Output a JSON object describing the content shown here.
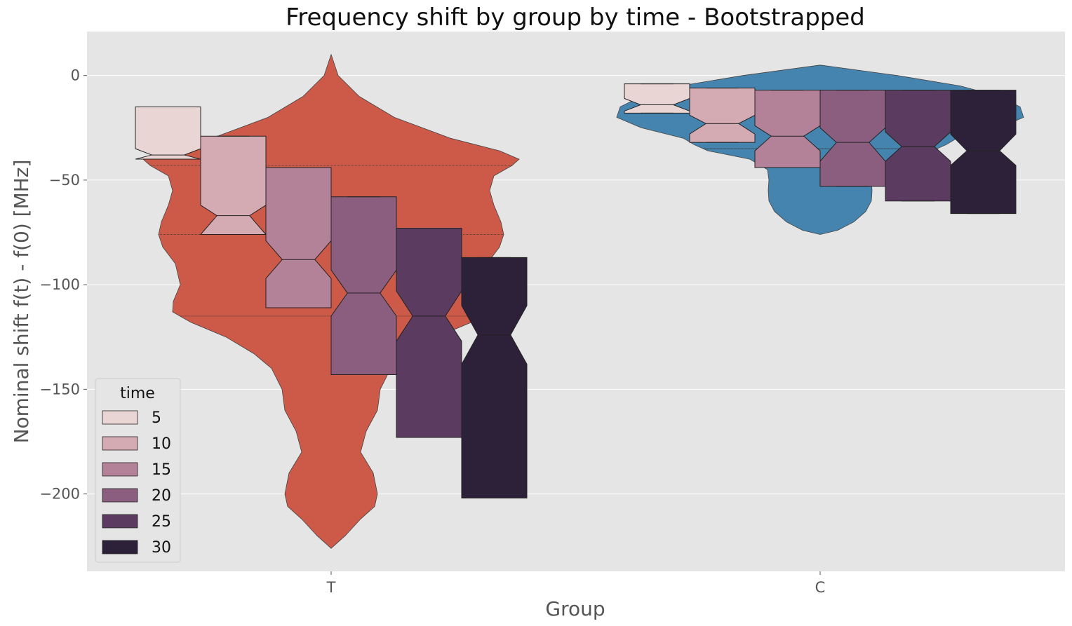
{
  "chart_data": {
    "type": "violin+boxplot",
    "title": "Frequency shift by group by time - Bootstrapped",
    "xlabel": "Group",
    "ylabel": "Nominal shift f(t) - f(0) [MHz]",
    "categories": [
      "T",
      "C"
    ],
    "ylim": [
      -237,
      21
    ],
    "yticks": [
      0,
      -50,
      -100,
      -150,
      -200
    ],
    "ytick_labels": [
      "0",
      "−50",
      "−100",
      "−150",
      "−200"
    ],
    "grid": true,
    "legend": {
      "title": "time",
      "placement": "lower-left",
      "entries": [
        "5",
        "10",
        "15",
        "20",
        "25",
        "30"
      ]
    },
    "colors": {
      "background": "#e5e5e5",
      "grid": "#ffffff",
      "violin_T": "#cd5a48",
      "violin_C": "#4484ae",
      "box_5": "#e9d5d3",
      "box_10": "#d5abb3",
      "box_15": "#b48298",
      "box_20": "#8b5e80",
      "box_25": "#5c3b60",
      "box_30": "#2d2139"
    },
    "violins": [
      {
        "group": "T",
        "quartile_lines": [
          -43,
          -76,
          -115
        ],
        "profile": [
          [
            10,
            0
          ],
          [
            0,
            10
          ],
          [
            -10,
            40
          ],
          [
            -20,
            90
          ],
          [
            -30,
            170
          ],
          [
            -36,
            240
          ],
          [
            -40,
            268
          ],
          [
            -43,
            258
          ],
          [
            -48,
            232
          ],
          [
            -55,
            226
          ],
          [
            -62,
            232
          ],
          [
            -70,
            242
          ],
          [
            -76,
            246
          ],
          [
            -82,
            240
          ],
          [
            -90,
            222
          ],
          [
            -100,
            215
          ],
          [
            -108,
            225
          ],
          [
            -113,
            226
          ],
          [
            -118,
            200
          ],
          [
            -125,
            150
          ],
          [
            -133,
            110
          ],
          [
            -140,
            85
          ],
          [
            -150,
            70
          ],
          [
            -160,
            66
          ],
          [
            -170,
            50
          ],
          [
            -180,
            42
          ],
          [
            -190,
            60
          ],
          [
            -200,
            66
          ],
          [
            -206,
            62
          ],
          [
            -212,
            42
          ],
          [
            -220,
            20
          ],
          [
            -226,
            0
          ]
        ]
      },
      {
        "group": "C",
        "quartile_lines": [
          -35,
          -35,
          -35
        ],
        "profile": [
          [
            5,
            0
          ],
          [
            0,
            110
          ],
          [
            -5,
            200
          ],
          [
            -10,
            255
          ],
          [
            -15,
            285
          ],
          [
            -20,
            290
          ],
          [
            -25,
            255
          ],
          [
            -30,
            195
          ],
          [
            -33,
            180
          ],
          [
            -36,
            160
          ],
          [
            -40,
            100
          ],
          [
            -45,
            75
          ],
          [
            -50,
            73
          ],
          [
            -55,
            74
          ],
          [
            -60,
            73
          ],
          [
            -65,
            65
          ],
          [
            -70,
            48
          ],
          [
            -74,
            25
          ],
          [
            -76,
            0
          ]
        ]
      }
    ],
    "boxes": [
      {
        "group": "T",
        "time": "5",
        "q1": -40,
        "median": -38,
        "q3": -15,
        "ci_low": -40,
        "ci_high": -35,
        "wlow": -40,
        "whigh": -15
      },
      {
        "group": "T",
        "time": "10",
        "q1": -76,
        "median": -67,
        "q3": -29,
        "ci_low": -76,
        "ci_high": -62,
        "wlow": -76,
        "whigh": -29
      },
      {
        "group": "T",
        "time": "15",
        "q1": -111,
        "median": -88,
        "q3": -44,
        "ci_low": -97,
        "ci_high": -79,
        "wlow": -111,
        "whigh": -44
      },
      {
        "group": "T",
        "time": "20",
        "q1": -143,
        "median": -104,
        "q3": -58,
        "ci_low": -115,
        "ci_high": -93,
        "wlow": -143,
        "whigh": -58
      },
      {
        "group": "T",
        "time": "25",
        "q1": -173,
        "median": -115,
        "q3": -73,
        "ci_low": -127,
        "ci_high": -103,
        "wlow": -173,
        "whigh": -73
      },
      {
        "group": "T",
        "time": "30",
        "q1": -202,
        "median": -124,
        "q3": -87,
        "ci_low": -138,
        "ci_high": -110,
        "wlow": -202,
        "whigh": -87
      },
      {
        "group": "C",
        "time": "5",
        "q1": -18,
        "median": -14,
        "q3": -4,
        "ci_low": -17,
        "ci_high": -11,
        "wlow": -18,
        "whigh": -4
      },
      {
        "group": "C",
        "time": "10",
        "q1": -32,
        "median": -23,
        "q3": -6,
        "ci_low": -28,
        "ci_high": -19,
        "wlow": -32,
        "whigh": -6
      },
      {
        "group": "C",
        "time": "15",
        "q1": -44,
        "median": -29,
        "q3": -7,
        "ci_low": -36,
        "ci_high": -24,
        "wlow": -44,
        "whigh": -7
      },
      {
        "group": "C",
        "time": "20",
        "q1": -53,
        "median": -32,
        "q3": -7,
        "ci_low": -41,
        "ci_high": -25,
        "wlow": -53,
        "whigh": -7
      },
      {
        "group": "C",
        "time": "25",
        "q1": -60,
        "median": -34,
        "q3": -7,
        "ci_low": -41,
        "ci_high": -27,
        "wlow": -60,
        "whigh": -7
      },
      {
        "group": "C",
        "time": "30",
        "q1": -66,
        "median": -36,
        "q3": -7,
        "ci_low": -43,
        "ci_high": -28,
        "wlow": -66,
        "whigh": -7
      }
    ]
  }
}
